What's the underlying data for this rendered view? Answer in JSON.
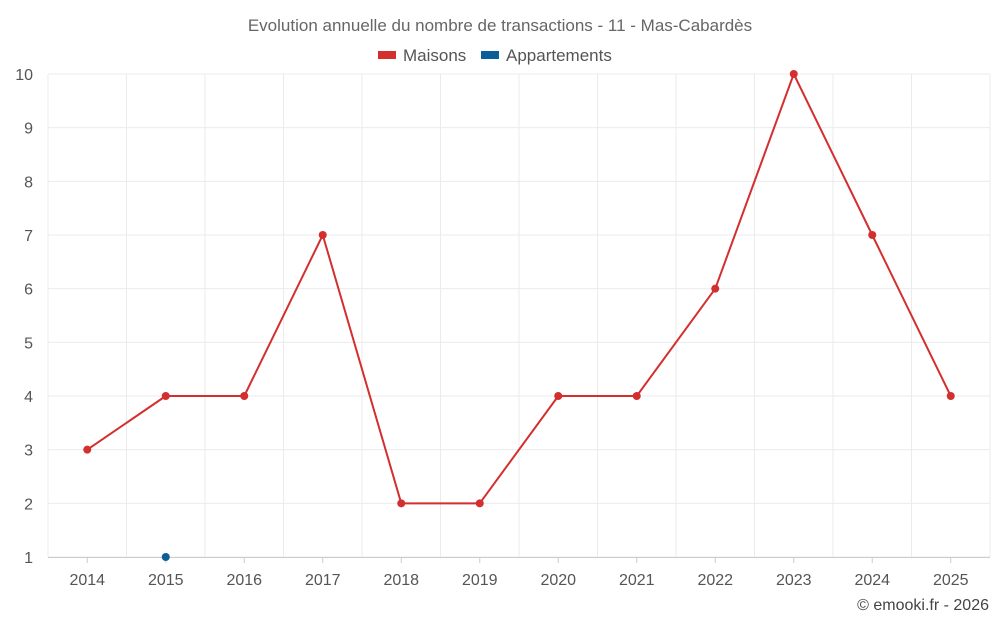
{
  "chart_data": {
    "type": "line",
    "title": "Evolution annuelle du nombre de transactions - 11 - Mas-Cabardès",
    "categories": [
      "2014",
      "2015",
      "2016",
      "2017",
      "2018",
      "2019",
      "2020",
      "2021",
      "2022",
      "2023",
      "2024",
      "2025"
    ],
    "series": [
      {
        "name": "Maisons",
        "color": "#d32f2f",
        "values": [
          3,
          4,
          4,
          7,
          2,
          2,
          4,
          4,
          6,
          10,
          7,
          4
        ]
      },
      {
        "name": "Appartements",
        "color": "#0b5f99",
        "values": [
          null,
          1,
          null,
          null,
          null,
          null,
          null,
          null,
          null,
          null,
          null,
          null
        ]
      }
    ],
    "y_ticks": [
      "1",
      "2",
      "3",
      "4",
      "5",
      "6",
      "7",
      "8",
      "9",
      "10"
    ],
    "ylim": [
      1,
      10
    ],
    "grid": true,
    "legend_position": "top-center",
    "xlabel": "",
    "ylabel": ""
  },
  "credit": "© emooki.fr - 2026"
}
